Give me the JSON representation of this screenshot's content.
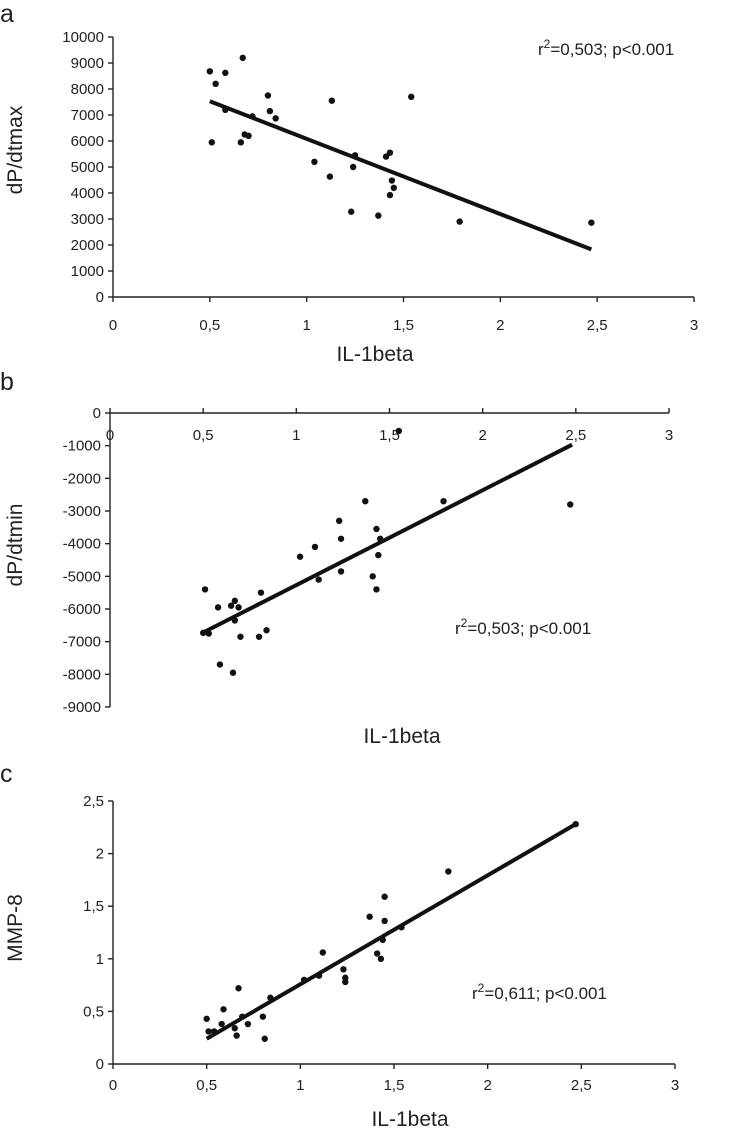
{
  "chart_data": [
    {
      "panel": "a",
      "type": "scatter",
      "xlabel": "IL-1beta",
      "ylabel": "dP/dtmax",
      "xlim": [
        0,
        3
      ],
      "ylim": [
        0,
        10000
      ],
      "xticks": [
        "0",
        "0,5",
        "1",
        "1,5",
        "2",
        "2,5",
        "3"
      ],
      "yticks": [
        "0",
        "1000",
        "2000",
        "3000",
        "4000",
        "5000",
        "6000",
        "7000",
        "8000",
        "9000",
        "10000"
      ],
      "annotation": {
        "prefix": "r",
        "sup": "2",
        "suffix": "=0,503; p<0.001"
      },
      "fit_line": {
        "x": [
          0.5,
          2.47
        ],
        "y": [
          7530,
          1830
        ]
      },
      "points": [
        [
          0.5,
          8680
        ],
        [
          0.53,
          8200
        ],
        [
          0.58,
          8620
        ],
        [
          0.67,
          9200
        ],
        [
          0.51,
          5950
        ],
        [
          0.58,
          7200
        ],
        [
          0.66,
          5950
        ],
        [
          0.68,
          6250
        ],
        [
          0.7,
          6200
        ],
        [
          0.72,
          6950
        ],
        [
          0.8,
          7750
        ],
        [
          0.81,
          7150
        ],
        [
          0.84,
          6870
        ],
        [
          1.04,
          5200
        ],
        [
          1.12,
          4630
        ],
        [
          1.13,
          7550
        ],
        [
          1.23,
          3280
        ],
        [
          1.24,
          5000
        ],
        [
          1.25,
          5450
        ],
        [
          1.37,
          3130
        ],
        [
          1.41,
          5400
        ],
        [
          1.43,
          5550
        ],
        [
          1.43,
          3920
        ],
        [
          1.44,
          4480
        ],
        [
          1.45,
          4200
        ],
        [
          1.54,
          7700
        ],
        [
          1.79,
          2900
        ],
        [
          2.47,
          2860
        ]
      ]
    },
    {
      "panel": "b",
      "type": "scatter",
      "xlabel": "IL-1beta",
      "ylabel": "dP/dtmin",
      "xlim": [
        0,
        3
      ],
      "ylim": [
        -9000,
        0
      ],
      "xticks": [
        "0",
        "0,5",
        "1",
        "1,5",
        "2",
        "2,5",
        "3"
      ],
      "yticks": [
        "0",
        "-1000",
        "-2000",
        "-3000",
        "-4000",
        "-5000",
        "-6000",
        "-7000",
        "-8000",
        "-9000"
      ],
      "annotation": {
        "prefix": "r",
        "sup": "2",
        "suffix": "=0,503; p<0.001"
      },
      "fit_line": {
        "x": [
          0.5,
          2.48
        ],
        "y": [
          -6720,
          -970
        ]
      },
      "points": [
        [
          0.5,
          -6730
        ],
        [
          0.51,
          -5400
        ],
        [
          0.53,
          -6750
        ],
        [
          0.58,
          -5950
        ],
        [
          0.59,
          -7700
        ],
        [
          0.65,
          -5900
        ],
        [
          0.66,
          -7950
        ],
        [
          0.67,
          -5750
        ],
        [
          0.67,
          -6350
        ],
        [
          0.69,
          -5950
        ],
        [
          0.7,
          -6850
        ],
        [
          0.8,
          -6850
        ],
        [
          0.81,
          -5500
        ],
        [
          0.84,
          -6650
        ],
        [
          1.02,
          -4400
        ],
        [
          1.1,
          -4100
        ],
        [
          1.12,
          -5100
        ],
        [
          1.23,
          -3300
        ],
        [
          1.24,
          -3850
        ],
        [
          1.24,
          -4850
        ],
        [
          1.37,
          -2700
        ],
        [
          1.41,
          -5000
        ],
        [
          1.43,
          -3550
        ],
        [
          1.43,
          -5400
        ],
        [
          1.44,
          -4350
        ],
        [
          1.45,
          -3850
        ],
        [
          1.55,
          -550
        ],
        [
          1.79,
          -2700
        ],
        [
          2.47,
          -2800
        ]
      ]
    },
    {
      "panel": "c",
      "type": "scatter",
      "xlabel": "IL-1beta",
      "ylabel": "MMP-8",
      "xlim": [
        0,
        3
      ],
      "ylim": [
        0,
        2.5
      ],
      "xticks": [
        "0",
        "0,5",
        "1",
        "1,5",
        "2",
        "2,5",
        "3"
      ],
      "yticks": [
        "0",
        "0,5",
        "1",
        "1,5",
        "2",
        "2,5"
      ],
      "annotation": {
        "prefix": "r",
        "sup": "2",
        "suffix": "=0,611; p<0.001"
      },
      "fit_line": {
        "x": [
          0.5,
          2.47
        ],
        "y": [
          0.24,
          2.28
        ]
      },
      "points": [
        [
          0.5,
          0.43
        ],
        [
          0.51,
          0.31
        ],
        [
          0.54,
          0.31
        ],
        [
          0.58,
          0.38
        ],
        [
          0.59,
          0.52
        ],
        [
          0.65,
          0.34
        ],
        [
          0.66,
          0.27
        ],
        [
          0.67,
          0.72
        ],
        [
          0.69,
          0.45
        ],
        [
          0.72,
          0.38
        ],
        [
          0.8,
          0.45
        ],
        [
          0.81,
          0.24
        ],
        [
          0.84,
          0.63
        ],
        [
          1.02,
          0.8
        ],
        [
          1.1,
          0.84
        ],
        [
          1.12,
          1.06
        ],
        [
          1.23,
          0.9
        ],
        [
          1.24,
          0.82
        ],
        [
          1.24,
          0.78
        ],
        [
          1.37,
          1.4
        ],
        [
          1.41,
          1.05
        ],
        [
          1.43,
          1.0
        ],
        [
          1.44,
          1.18
        ],
        [
          1.45,
          1.36
        ],
        [
          1.45,
          1.59
        ],
        [
          1.54,
          1.3
        ],
        [
          1.79,
          1.83
        ],
        [
          2.47,
          2.28
        ]
      ]
    }
  ]
}
